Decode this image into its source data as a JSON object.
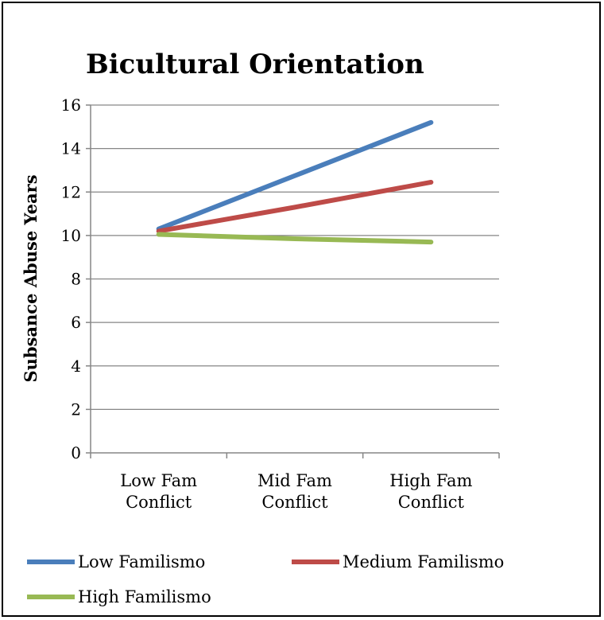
{
  "chart_data": {
    "type": "line",
    "title": "Bicultural Orientation",
    "xlabel": "",
    "ylabel": "Subsance Abuse Years",
    "categories": [
      [
        "Low Fam",
        "Conflict"
      ],
      [
        "Mid Fam",
        "Conflict"
      ],
      [
        "High Fam",
        "Conflict"
      ]
    ],
    "ylim": [
      0,
      16
    ],
    "yticks": [
      0,
      2,
      4,
      6,
      8,
      10,
      12,
      14,
      16
    ],
    "grid": true,
    "legend_position": "bottom",
    "series": [
      {
        "name": "Low Familismo",
        "color": "#4A7EBB",
        "values": [
          10.3,
          12.75,
          15.2
        ]
      },
      {
        "name": "Medium Familismo",
        "color": "#BE4B48",
        "values": [
          10.2,
          11.3,
          12.45
        ]
      },
      {
        "name": "High Familismo",
        "color": "#98B954",
        "values": [
          10.05,
          9.85,
          9.7
        ]
      }
    ]
  }
}
